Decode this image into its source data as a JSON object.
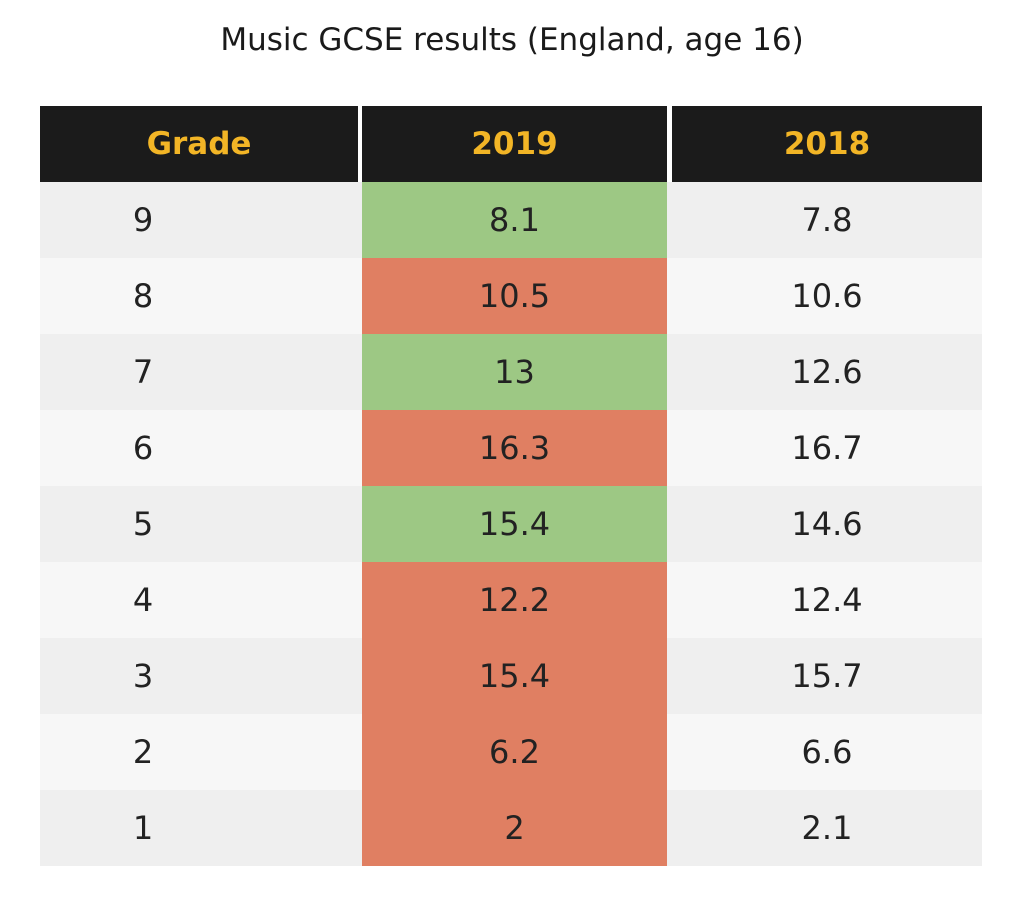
{
  "title": "Music GCSE results (England, age 16)",
  "table": {
    "header": [
      "Grade",
      "2019",
      "2018"
    ],
    "rows": [
      [
        9,
        8.1,
        7.8
      ],
      [
        8,
        10.5,
        10.6
      ],
      [
        7,
        13,
        12.6
      ],
      [
        6,
        16.3,
        16.7
      ],
      [
        5,
        15.4,
        14.6
      ],
      [
        4,
        12.2,
        12.4
      ],
      [
        3,
        15.4,
        15.7
      ],
      [
        2,
        6.2,
        6.6
      ],
      [
        1,
        2,
        2.1
      ]
    ],
    "highlight_colors": [
      "#9dc884",
      "#e07f62",
      "#9dc884",
      "#e07f62",
      "#9dc884",
      "#e07f62",
      "#e07f62",
      "#e07f62",
      "#e07f62"
    ]
  }
}
